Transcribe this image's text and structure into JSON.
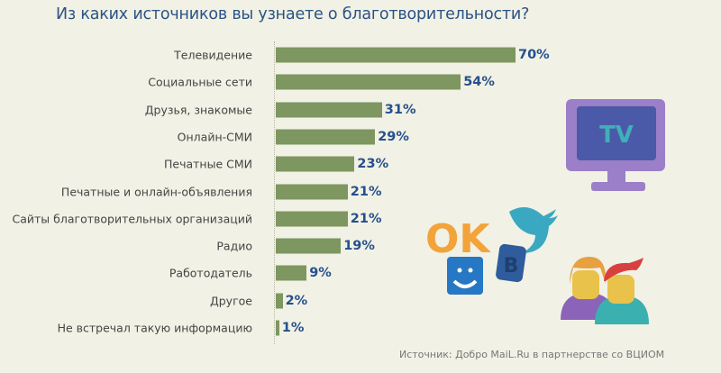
{
  "chart_data": {
    "type": "bar",
    "orientation": "horizontal",
    "title": "Из каких источников вы узнаете о благотворительности?",
    "categories": [
      "Телевидение",
      "Социальные сети",
      "Друзья, знакомые",
      "Онлайн-СМИ",
      "Печатные СМИ",
      "Печатные и онлайн-объявления",
      "Сайты благотворительных организаций",
      "Радио",
      "Работодатель",
      "Другое",
      "Не встречал такую информацию"
    ],
    "values": [
      70,
      54,
      31,
      29,
      23,
      21,
      21,
      19,
      9,
      2,
      1
    ],
    "value_labels": [
      "70%",
      "54%",
      "31%",
      "29%",
      "23%",
      "21%",
      "21%",
      "19%",
      "9%",
      "2%",
      "1%"
    ],
    "xlabel": "",
    "ylabel": "",
    "xlim": [
      0,
      70
    ],
    "grid": false,
    "colors": {
      "bar": "#7e9660",
      "value_label": "#24508c",
      "title": "#2a5286"
    }
  },
  "source": "Источник: Добро MaiL.Ru в партнерстве со ВЦИОМ",
  "illustration": {
    "tv_text": "TV",
    "ok_text": "OK",
    "vk_text": "B"
  }
}
